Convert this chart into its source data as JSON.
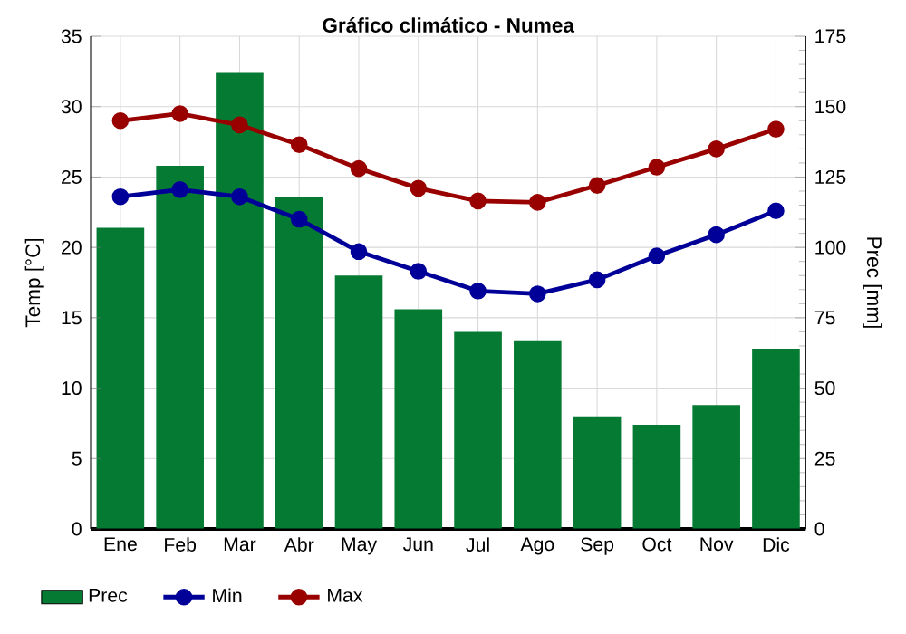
{
  "chart_data": {
    "type": "bar",
    "title": "Gráfico climático - Numea",
    "categories": [
      "Ene",
      "Feb",
      "Mar",
      "Abr",
      "May",
      "Jun",
      "Jul",
      "Ago",
      "Sep",
      "Oct",
      "Nov",
      "Dic"
    ],
    "series": [
      {
        "name": "Prec",
        "axis": "y2",
        "color": "#047a33",
        "values": [
          107,
          129,
          162,
          118,
          90,
          78,
          70,
          67,
          40,
          37,
          44,
          64
        ]
      },
      {
        "name": "Min",
        "type": "line",
        "color": "#000099",
        "values": [
          23.6,
          24.1,
          23.6,
          22.0,
          19.7,
          18.3,
          16.9,
          16.7,
          17.7,
          19.4,
          20.9,
          22.6
        ]
      },
      {
        "name": "Max",
        "type": "line",
        "color": "#990000",
        "values": [
          29.0,
          29.5,
          28.7,
          27.3,
          25.6,
          24.2,
          23.3,
          23.2,
          24.4,
          25.7,
          27.0,
          28.4
        ]
      }
    ],
    "ylabel": "Temp [°C]",
    "y2label": "Prec [mm]",
    "ylim": [
      0,
      35
    ],
    "yticks": [
      0,
      5,
      10,
      15,
      20,
      25,
      30,
      35
    ],
    "y2lim": [
      0,
      175
    ],
    "y2ticks": [
      0,
      25,
      50,
      75,
      100,
      125,
      150,
      175
    ],
    "grid": true,
    "legend": "bottom",
    "marker": "circle"
  }
}
